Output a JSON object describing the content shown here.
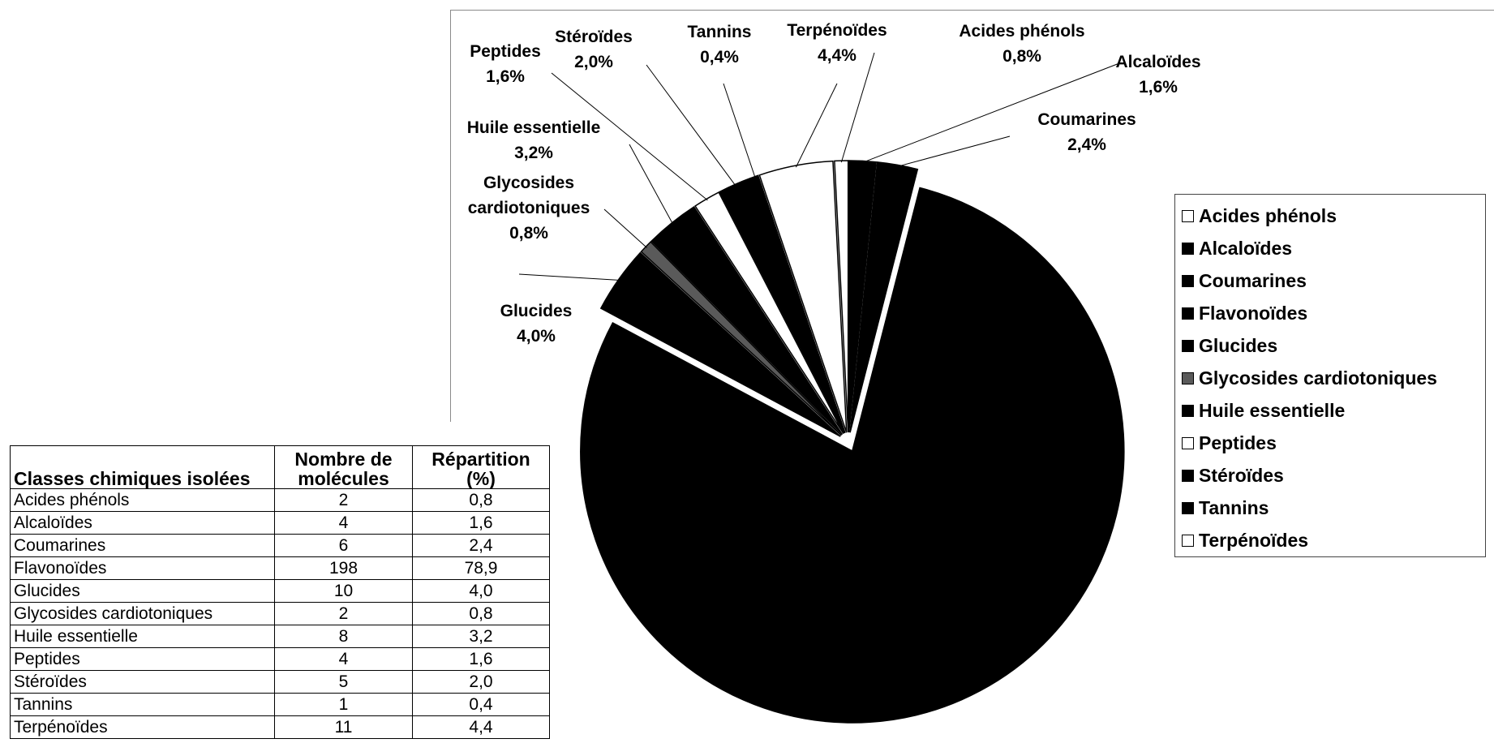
{
  "chart_data": {
    "type": "pie",
    "categories": [
      "Acides phénols",
      "Alcaloïdes",
      "Coumarines",
      "Flavonoïdes",
      "Glucides",
      "Glycosides cardiotoniques",
      "Huile essentielle",
      "Peptides",
      "Stéroïdes",
      "Tannins",
      "Terpénoïdes"
    ],
    "values": [
      0.8,
      1.6,
      2.4,
      78.9,
      4.0,
      0.8,
      3.2,
      1.6,
      2.0,
      0.4,
      4.4
    ],
    "slice_labels": [
      {
        "name": "Acides phénols",
        "value": "0,8%"
      },
      {
        "name": "Alcaloïdes",
        "value": "1,6%"
      },
      {
        "name": "Coumarines",
        "value": "2,4%"
      },
      {
        "name": "Flavonoïdes",
        "value": ""
      },
      {
        "name": "Glucides",
        "value": "4,0%"
      },
      {
        "name": "Glycosides cardiotoniques",
        "value": "0,8%"
      },
      {
        "name": "Huile essentielle",
        "value": "3,2%"
      },
      {
        "name": "Peptides",
        "value": "1,6%"
      },
      {
        "name": "Stéroïdes",
        "value": "2,0%"
      },
      {
        "name": "Tannins",
        "value": "0,4%"
      },
      {
        "name": "Terpénoïdes",
        "value": "4,4%"
      }
    ],
    "colors": [
      "#ffffff",
      "#000000",
      "#000000",
      "#000000",
      "#000000",
      "#5a5a5a",
      "#000000",
      "#ffffff",
      "#000000",
      "#000000",
      "#ffffff"
    ],
    "legend": {
      "placement": "right",
      "entries": [
        "Acides phénols",
        "Alcaloïdes",
        "Coumarines",
        "Flavonoïdes",
        "Glucides",
        "Glycosides cardiotoniques",
        "Huile essentielle",
        "Peptides",
        "Stéroïdes",
        "Tannins",
        "Terpénoïdes"
      ]
    },
    "exploded": true
  },
  "table": {
    "headers": [
      "Classes chimiques isolées",
      "Nombre de molécules",
      "Répartition (%)"
    ],
    "rows": [
      [
        "Acides phénols",
        "2",
        "0,8"
      ],
      [
        "Alcaloïdes",
        "4",
        "1,6"
      ],
      [
        "Coumarines",
        "6",
        "2,4"
      ],
      [
        "Flavonoïdes",
        "198",
        "78,9"
      ],
      [
        "Glucides",
        "10",
        "4,0"
      ],
      [
        "Glycosides cardiotoniques",
        "2",
        "0,8"
      ],
      [
        "Huile essentielle",
        "8",
        "3,2"
      ],
      [
        "Peptides",
        "4",
        "1,6"
      ],
      [
        "Stéroïdes",
        "5",
        "2,0"
      ],
      [
        "Tannins",
        "1",
        "0,4"
      ],
      [
        "Terpénoïdes",
        "11",
        "4,4"
      ]
    ]
  }
}
